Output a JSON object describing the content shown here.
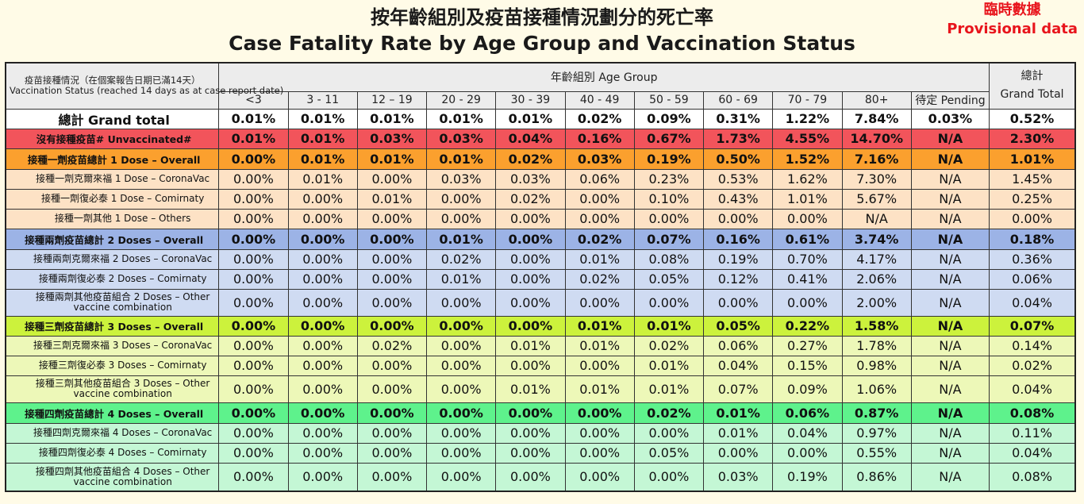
{
  "title": {
    "zh": "按年齡組別及疫苗接種情況劃分的死亡率",
    "en": "Case Fatality Rate by Age Group and Vaccination Status"
  },
  "provisional": {
    "zh": "臨時數據",
    "en": "Provisional data"
  },
  "header": {
    "status_zh": "疫苗接種情況（在個案報告日期已滿14天）",
    "status_en": "Vaccination Status (reached 14 days as at case report date)",
    "age_group": "年齡組別 Age Group",
    "total_zh": "總計",
    "total_en": "Grand Total"
  },
  "colors": {
    "grand": "#ffffff",
    "unvaccinated": "#f2545b",
    "dose1_overall": "#fba02e",
    "dose1_sub": "#fde2c5",
    "dose2_overall": "#9cb3e6",
    "dose2_sub": "#cfdbf2",
    "dose3_overall": "#ccf23c",
    "dose3_sub": "#edf8b8",
    "dose4_overall": "#5ef28c",
    "dose4_sub": "#c4f7d5",
    "provisional_text": "#e8141c"
  },
  "chart_data": {
    "type": "table",
    "title": "按年齡組別及疫苗接種情況劃分的死亡率 Case Fatality Rate by Age Group and Vaccination Status",
    "columns": [
      "<3",
      "3 - 11",
      "12 – 19",
      "20 - 29",
      "30 - 39",
      "40 - 49",
      "50 - 59",
      "60 - 69",
      "70 - 79",
      "80+",
      "待定 Pending"
    ],
    "rows": [
      {
        "label": "總計 Grand total",
        "values": [
          "0.01%",
          "0.01%",
          "0.01%",
          "0.01%",
          "0.01%",
          "0.02%",
          "0.09%",
          "0.31%",
          "1.22%",
          "7.84%",
          "0.03%"
        ],
        "total": "0.52%"
      },
      {
        "label": "沒有接種疫苗# Unvaccinated#",
        "values": [
          "0.01%",
          "0.01%",
          "0.03%",
          "0.03%",
          "0.04%",
          "0.16%",
          "0.67%",
          "1.73%",
          "4.55%",
          "14.70%",
          "N/A"
        ],
        "total": "2.30%"
      },
      {
        "label": "接種一劑疫苗總計 1 Dose – Overall",
        "values": [
          "0.00%",
          "0.01%",
          "0.01%",
          "0.01%",
          "0.02%",
          "0.03%",
          "0.19%",
          "0.50%",
          "1.52%",
          "7.16%",
          "N/A"
        ],
        "total": "1.01%"
      },
      {
        "label": "接種一劑克爾來福 1 Dose – CoronaVac",
        "values": [
          "0.00%",
          "0.01%",
          "0.00%",
          "0.03%",
          "0.03%",
          "0.06%",
          "0.23%",
          "0.53%",
          "1.62%",
          "7.30%",
          "N/A"
        ],
        "total": "1.45%"
      },
      {
        "label": "接種一劑復必泰 1 Dose – Comirnaty",
        "values": [
          "0.00%",
          "0.00%",
          "0.01%",
          "0.00%",
          "0.02%",
          "0.00%",
          "0.10%",
          "0.43%",
          "1.01%",
          "5.67%",
          "N/A"
        ],
        "total": "0.25%"
      },
      {
        "label": "接種一劑其他 1 Dose – Others",
        "values": [
          "0.00%",
          "0.00%",
          "0.00%",
          "0.00%",
          "0.00%",
          "0.00%",
          "0.00%",
          "0.00%",
          "0.00%",
          "N/A",
          "N/A"
        ],
        "total": "0.00%"
      },
      {
        "label": "接種兩劑疫苗總計 2 Doses – Overall",
        "values": [
          "0.00%",
          "0.00%",
          "0.00%",
          "0.01%",
          "0.00%",
          "0.02%",
          "0.07%",
          "0.16%",
          "0.61%",
          "3.74%",
          "N/A"
        ],
        "total": "0.18%"
      },
      {
        "label": "接種兩劑克爾來福 2 Doses – CoronaVac",
        "values": [
          "0.00%",
          "0.00%",
          "0.00%",
          "0.02%",
          "0.00%",
          "0.01%",
          "0.08%",
          "0.19%",
          "0.70%",
          "4.17%",
          "N/A"
        ],
        "total": "0.36%"
      },
      {
        "label": "接種兩劑復必泰 2 Doses – Comirnaty",
        "values": [
          "0.00%",
          "0.00%",
          "0.00%",
          "0.01%",
          "0.00%",
          "0.02%",
          "0.05%",
          "0.12%",
          "0.41%",
          "2.06%",
          "N/A"
        ],
        "total": "0.06%"
      },
      {
        "label": "接種兩劑其他疫苗組合 2 Doses – Other vaccine combination",
        "values": [
          "0.00%",
          "0.00%",
          "0.00%",
          "0.00%",
          "0.00%",
          "0.00%",
          "0.00%",
          "0.00%",
          "0.00%",
          "2.00%",
          "N/A"
        ],
        "total": "0.04%"
      },
      {
        "label": "接種三劑疫苗總計 3 Doses – Overall",
        "values": [
          "0.00%",
          "0.00%",
          "0.00%",
          "0.00%",
          "0.00%",
          "0.01%",
          "0.01%",
          "0.05%",
          "0.22%",
          "1.58%",
          "N/A"
        ],
        "total": "0.07%"
      },
      {
        "label": "接種三劑克爾來福 3 Doses – CoronaVac",
        "values": [
          "0.00%",
          "0.00%",
          "0.02%",
          "0.00%",
          "0.01%",
          "0.01%",
          "0.02%",
          "0.06%",
          "0.27%",
          "1.78%",
          "N/A"
        ],
        "total": "0.14%"
      },
      {
        "label": "接種三劑復必泰 3 Doses – Comirnaty",
        "values": [
          "0.00%",
          "0.00%",
          "0.00%",
          "0.00%",
          "0.00%",
          "0.00%",
          "0.01%",
          "0.04%",
          "0.15%",
          "0.98%",
          "N/A"
        ],
        "total": "0.02%"
      },
      {
        "label": "接種三劑其他疫苗組合 3 Doses – Other vaccine combination",
        "values": [
          "0.00%",
          "0.00%",
          "0.00%",
          "0.00%",
          "0.01%",
          "0.01%",
          "0.01%",
          "0.07%",
          "0.09%",
          "1.06%",
          "N/A"
        ],
        "total": "0.04%"
      },
      {
        "label": "接種四劑疫苗總計 4 Doses – Overall",
        "values": [
          "0.00%",
          "0.00%",
          "0.00%",
          "0.00%",
          "0.00%",
          "0.00%",
          "0.02%",
          "0.01%",
          "0.06%",
          "0.87%",
          "N/A"
        ],
        "total": "0.08%"
      },
      {
        "label": "接種四劑克爾來福 4 Doses – CoronaVac",
        "values": [
          "0.00%",
          "0.00%",
          "0.00%",
          "0.00%",
          "0.00%",
          "0.00%",
          "0.00%",
          "0.01%",
          "0.04%",
          "0.97%",
          "N/A"
        ],
        "total": "0.11%"
      },
      {
        "label": "接種四劑復必泰 4 Doses – Comirnaty",
        "values": [
          "0.00%",
          "0.00%",
          "0.00%",
          "0.00%",
          "0.00%",
          "0.00%",
          "0.05%",
          "0.00%",
          "0.00%",
          "0.55%",
          "N/A"
        ],
        "total": "0.04%"
      },
      {
        "label": "接種四劑其他疫苗組合 4 Doses – Other vaccine combination",
        "values": [
          "0.00%",
          "0.00%",
          "0.00%",
          "0.00%",
          "0.00%",
          "0.00%",
          "0.00%",
          "0.03%",
          "0.19%",
          "0.86%",
          "N/A"
        ],
        "total": "0.08%"
      }
    ]
  }
}
